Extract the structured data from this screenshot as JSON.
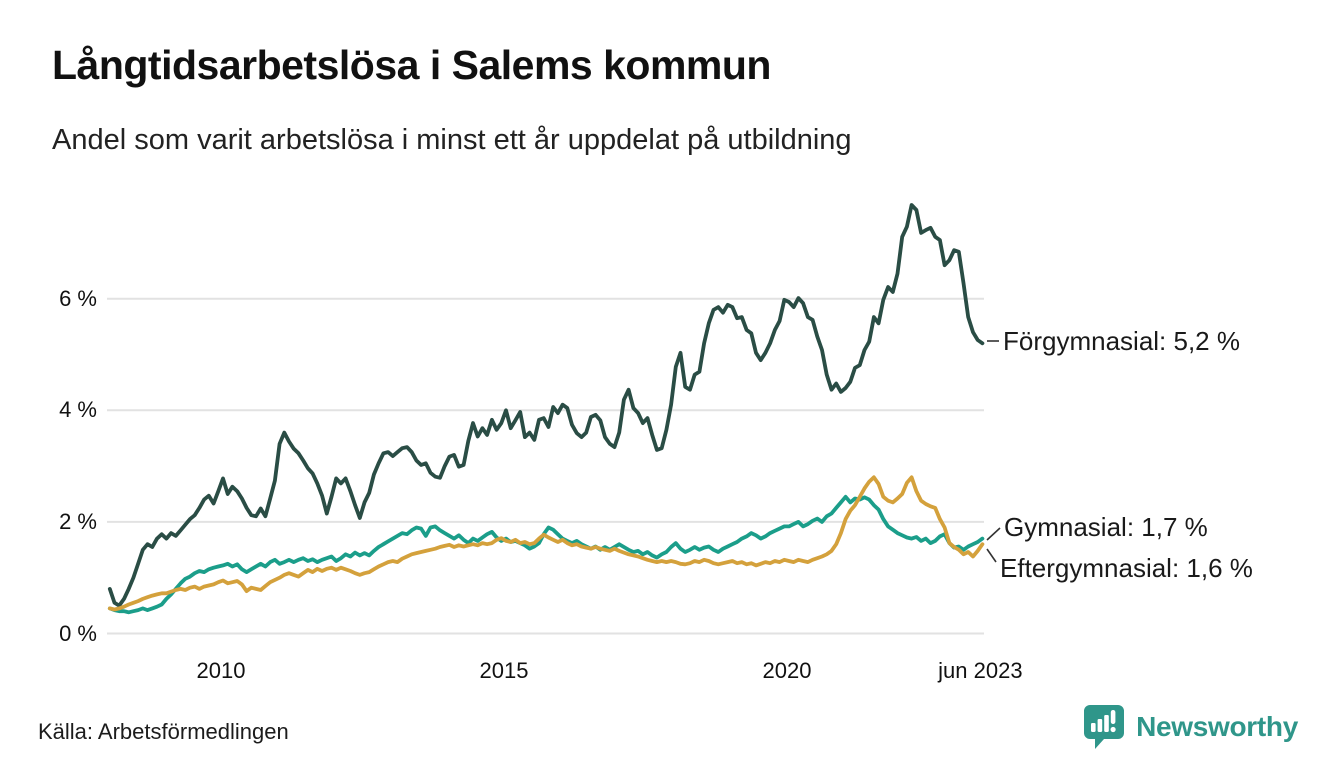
{
  "header": {
    "title": "Långtidsarbetslösa i Salems kommun",
    "subtitle": "Andel som varit arbetslösa i minst ett år uppdelat på utbildning"
  },
  "footer": {
    "source": "Källa: Arbetsförmedlingen",
    "brand": "Newsworthy"
  },
  "colors": {
    "forgymnasial": "#2a4d45",
    "gymnasial": "#1b9e8a",
    "eftergymnasial": "#d4a13c",
    "gridline": "#e2e2e2",
    "annotation_line": "#333333",
    "brand_teal": "#2f968a"
  },
  "chart_data": {
    "type": "line",
    "title": "Långtidsarbetslösa i Salems kommun",
    "subtitle": "Andel som varit arbetslösa i minst ett år uppdelat på utbildning",
    "x_unit": "month",
    "x_start": "2008-01",
    "x_end": "2023-06",
    "ylabel": "",
    "xlabel": "",
    "ylim": [
      0,
      8
    ],
    "xlim_years": [
      2008.0,
      2023.42
    ],
    "grid": true,
    "yticks": [
      {
        "label": "0 %",
        "value": 0
      },
      {
        "label": "2 %",
        "value": 2
      },
      {
        "label": "4 %",
        "value": 4
      },
      {
        "label": "6 %",
        "value": 6
      }
    ],
    "xticks": [
      {
        "label": "2010",
        "year": 2010
      },
      {
        "label": "2015",
        "year": 2015
      },
      {
        "label": "2020",
        "year": 2020
      },
      {
        "label": "jun 2023",
        "year": 2023.417
      }
    ],
    "series": [
      {
        "name": "Förgymnasial",
        "color_key": "forgymnasial",
        "end_label": "Förgymnasial: 5,2 %",
        "end_value_pct": 5.2,
        "values": [
          0.8,
          0.55,
          0.5,
          0.62,
          0.8,
          1.0,
          1.25,
          1.5,
          1.6,
          1.55,
          1.7,
          1.78,
          1.7,
          1.8,
          1.75,
          1.85,
          1.95,
          2.05,
          2.12,
          2.25,
          2.4,
          2.47,
          2.33,
          2.55,
          2.78,
          2.5,
          2.63,
          2.55,
          2.42,
          2.25,
          2.12,
          2.1,
          2.24,
          2.1,
          2.42,
          2.74,
          3.4,
          3.6,
          3.44,
          3.31,
          3.23,
          3.1,
          2.96,
          2.87,
          2.69,
          2.47,
          2.15,
          2.45,
          2.78,
          2.69,
          2.78,
          2.55,
          2.3,
          2.07,
          2.35,
          2.52,
          2.85,
          3.05,
          3.23,
          3.25,
          3.18,
          3.25,
          3.32,
          3.34,
          3.25,
          3.1,
          3.02,
          3.05,
          2.88,
          2.81,
          2.79,
          3.0,
          3.17,
          3.2,
          2.99,
          3.02,
          3.45,
          3.77,
          3.53,
          3.68,
          3.56,
          3.83,
          3.65,
          3.77,
          4.0,
          3.68,
          3.82,
          3.97,
          3.52,
          3.6,
          3.47,
          3.83,
          3.86,
          3.7,
          4.06,
          3.95,
          4.1,
          4.04,
          3.74,
          3.59,
          3.52,
          3.6,
          3.88,
          3.92,
          3.82,
          3.52,
          3.4,
          3.34,
          3.6,
          4.19,
          4.37,
          4.04,
          3.95,
          3.77,
          3.86,
          3.56,
          3.29,
          3.32,
          3.65,
          4.1,
          4.78,
          5.03,
          4.42,
          4.37,
          4.64,
          4.69,
          5.2,
          5.56,
          5.8,
          5.85,
          5.75,
          5.89,
          5.85,
          5.65,
          5.67,
          5.44,
          5.38,
          5.03,
          4.9,
          5.03,
          5.2,
          5.44,
          5.6,
          5.98,
          5.94,
          5.85,
          6.01,
          5.92,
          5.67,
          5.62,
          5.32,
          5.08,
          4.64,
          4.37,
          4.48,
          4.33,
          4.4,
          4.51,
          4.76,
          4.81,
          5.08,
          5.23,
          5.67,
          5.56,
          5.98,
          6.21,
          6.12,
          6.45,
          7.11,
          7.29,
          7.68,
          7.59,
          7.18,
          7.23,
          7.27,
          7.11,
          7.05,
          6.6,
          6.69,
          6.87,
          6.84,
          6.28,
          5.67,
          5.4,
          5.26,
          5.2
        ]
      },
      {
        "name": "Gymnasial",
        "color_key": "gymnasial",
        "end_label": "Gymnasial: 1,7 %",
        "end_value_pct": 1.7,
        "values": [
          0.45,
          0.42,
          0.4,
          0.4,
          0.38,
          0.4,
          0.42,
          0.45,
          0.42,
          0.45,
          0.48,
          0.52,
          0.62,
          0.7,
          0.8,
          0.9,
          0.98,
          1.02,
          1.08,
          1.12,
          1.1,
          1.15,
          1.18,
          1.2,
          1.22,
          1.25,
          1.2,
          1.24,
          1.15,
          1.1,
          1.15,
          1.2,
          1.25,
          1.2,
          1.28,
          1.32,
          1.25,
          1.28,
          1.32,
          1.28,
          1.32,
          1.35,
          1.3,
          1.33,
          1.28,
          1.32,
          1.35,
          1.38,
          1.3,
          1.35,
          1.42,
          1.38,
          1.45,
          1.4,
          1.44,
          1.4,
          1.48,
          1.55,
          1.6,
          1.65,
          1.7,
          1.75,
          1.8,
          1.78,
          1.85,
          1.9,
          1.88,
          1.75,
          1.9,
          1.92,
          1.85,
          1.8,
          1.75,
          1.7,
          1.76,
          1.68,
          1.62,
          1.7,
          1.66,
          1.72,
          1.78,
          1.82,
          1.72,
          1.66,
          1.7,
          1.64,
          1.66,
          1.62,
          1.58,
          1.52,
          1.56,
          1.62,
          1.78,
          1.9,
          1.86,
          1.78,
          1.7,
          1.66,
          1.62,
          1.66,
          1.6,
          1.56,
          1.52,
          1.56,
          1.5,
          1.55,
          1.5,
          1.55,
          1.6,
          1.55,
          1.5,
          1.46,
          1.48,
          1.42,
          1.46,
          1.4,
          1.36,
          1.42,
          1.46,
          1.55,
          1.62,
          1.52,
          1.46,
          1.5,
          1.55,
          1.5,
          1.54,
          1.56,
          1.5,
          1.46,
          1.52,
          1.56,
          1.6,
          1.64,
          1.7,
          1.74,
          1.8,
          1.76,
          1.7,
          1.74,
          1.8,
          1.84,
          1.88,
          1.92,
          1.92,
          1.96,
          2.0,
          1.92,
          1.96,
          2.02,
          2.06,
          2.0,
          2.1,
          2.15,
          2.25,
          2.35,
          2.45,
          2.35,
          2.42,
          2.4,
          2.44,
          2.4,
          2.3,
          2.22,
          2.05,
          1.92,
          1.86,
          1.8,
          1.76,
          1.72,
          1.7,
          1.73,
          1.66,
          1.7,
          1.62,
          1.66,
          1.74,
          1.78,
          1.62,
          1.54,
          1.56,
          1.5,
          1.56,
          1.6,
          1.64,
          1.7
        ]
      },
      {
        "name": "Eftergymnasial",
        "color_key": "eftergymnasial",
        "end_label": "Eftergymnasial: 1,6 %",
        "end_value_pct": 1.6,
        "values": [
          0.45,
          0.43,
          0.45,
          0.48,
          0.52,
          0.55,
          0.58,
          0.62,
          0.65,
          0.68,
          0.7,
          0.72,
          0.72,
          0.75,
          0.78,
          0.8,
          0.78,
          0.82,
          0.84,
          0.8,
          0.84,
          0.86,
          0.88,
          0.92,
          0.95,
          0.9,
          0.92,
          0.94,
          0.88,
          0.76,
          0.82,
          0.8,
          0.78,
          0.85,
          0.92,
          0.96,
          1.0,
          1.05,
          1.08,
          1.05,
          1.02,
          1.08,
          1.14,
          1.1,
          1.16,
          1.12,
          1.16,
          1.18,
          1.14,
          1.18,
          1.15,
          1.12,
          1.08,
          1.05,
          1.08,
          1.1,
          1.15,
          1.2,
          1.24,
          1.28,
          1.3,
          1.28,
          1.34,
          1.38,
          1.42,
          1.44,
          1.46,
          1.48,
          1.5,
          1.52,
          1.55,
          1.57,
          1.59,
          1.55,
          1.58,
          1.56,
          1.58,
          1.6,
          1.58,
          1.62,
          1.6,
          1.62,
          1.68,
          1.71,
          1.66,
          1.64,
          1.68,
          1.62,
          1.64,
          1.6,
          1.62,
          1.7,
          1.77,
          1.72,
          1.68,
          1.64,
          1.68,
          1.62,
          1.58,
          1.6,
          1.56,
          1.54,
          1.52,
          1.55,
          1.52,
          1.5,
          1.48,
          1.52,
          1.48,
          1.45,
          1.42,
          1.4,
          1.38,
          1.35,
          1.32,
          1.3,
          1.28,
          1.3,
          1.28,
          1.3,
          1.28,
          1.25,
          1.24,
          1.26,
          1.3,
          1.28,
          1.32,
          1.3,
          1.26,
          1.24,
          1.26,
          1.28,
          1.3,
          1.26,
          1.28,
          1.24,
          1.26,
          1.22,
          1.25,
          1.28,
          1.26,
          1.3,
          1.28,
          1.32,
          1.3,
          1.28,
          1.32,
          1.3,
          1.28,
          1.32,
          1.35,
          1.38,
          1.42,
          1.48,
          1.6,
          1.8,
          2.05,
          2.2,
          2.3,
          2.45,
          2.6,
          2.72,
          2.8,
          2.68,
          2.45,
          2.38,
          2.35,
          2.42,
          2.5,
          2.7,
          2.8,
          2.55,
          2.38,
          2.32,
          2.28,
          2.25,
          2.05,
          1.9,
          1.62,
          1.55,
          1.5,
          1.42,
          1.46,
          1.38,
          1.48,
          1.6
        ]
      }
    ]
  }
}
